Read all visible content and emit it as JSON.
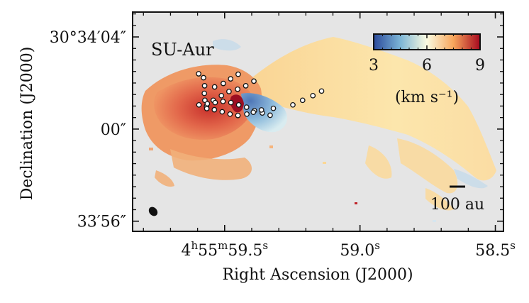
{
  "chart_data": {
    "type": "heatmap",
    "object_label": "SU-Aur",
    "xlabel": "Right Ascension (J2000)",
    "ylabel": "Declination (J2000)",
    "x_ticks": [
      {
        "value": 59.5,
        "label": "4h55m59.5s"
      },
      {
        "value": 59.0,
        "label": "59.0s"
      },
      {
        "value": 58.5,
        "label": "58.5s"
      }
    ],
    "y_ticks": [
      {
        "value": 4,
        "label": "30°34′04″"
      },
      {
        "value": 0,
        "label": "00″"
      },
      {
        "value": -4,
        "label": "33′56″"
      }
    ],
    "xlim": [
      59.84,
      58.47
    ],
    "ylim": [
      -4.44,
      5.08
    ],
    "colorbar": {
      "label": "(km s⁻¹)",
      "min": 3,
      "max": 9,
      "ticks": [
        3,
        6,
        9
      ],
      "colormap": "RdYlBu_r"
    },
    "scale_bar": {
      "label": "100 au"
    },
    "background_color": "#e5e5e5",
    "tail_markers": [
      {
        "name": "tail-1",
        "points": [
          [
            59.596,
            2.4
          ],
          [
            59.578,
            2.23
          ],
          [
            59.574,
            1.88
          ],
          [
            59.575,
            1.55
          ],
          [
            59.573,
            1.25
          ]
        ]
      },
      {
        "name": "tail-2",
        "points": [
          [
            59.537,
            1.83
          ],
          [
            59.505,
            1.98
          ],
          [
            59.478,
            2.18
          ],
          [
            59.45,
            2.38
          ]
        ]
      },
      {
        "name": "tail-3",
        "points": [
          [
            59.567,
            0.99
          ],
          [
            59.542,
            1.25
          ],
          [
            59.512,
            1.45
          ],
          [
            59.484,
            1.63
          ],
          [
            59.452,
            1.73
          ],
          [
            59.422,
            1.88
          ],
          [
            59.392,
            2.08
          ]
        ]
      },
      {
        "name": "tail-4",
        "points": [
          [
            59.595,
            1.05
          ],
          [
            59.564,
            1.1
          ],
          [
            59.535,
            1.15
          ],
          [
            59.506,
            1.2
          ],
          [
            59.477,
            1.15
          ],
          [
            59.448,
            1.05
          ],
          [
            59.419,
            0.95
          ],
          [
            59.39,
            0.8
          ],
          [
            59.361,
            0.7
          ],
          [
            59.332,
            0.6
          ]
        ]
      },
      {
        "name": "tail-5",
        "points": [
          [
            59.566,
            0.89
          ],
          [
            59.538,
            0.84
          ],
          [
            59.509,
            0.75
          ],
          [
            59.48,
            0.65
          ],
          [
            59.451,
            0.59
          ],
          [
            59.418,
            0.65
          ],
          [
            59.394,
            0.73
          ],
          [
            59.364,
            0.83
          ],
          [
            59.32,
            0.9
          ],
          [
            59.248,
            1.05
          ],
          [
            59.212,
            1.25
          ],
          [
            59.174,
            1.45
          ],
          [
            59.142,
            1.65
          ]
        ]
      }
    ]
  }
}
